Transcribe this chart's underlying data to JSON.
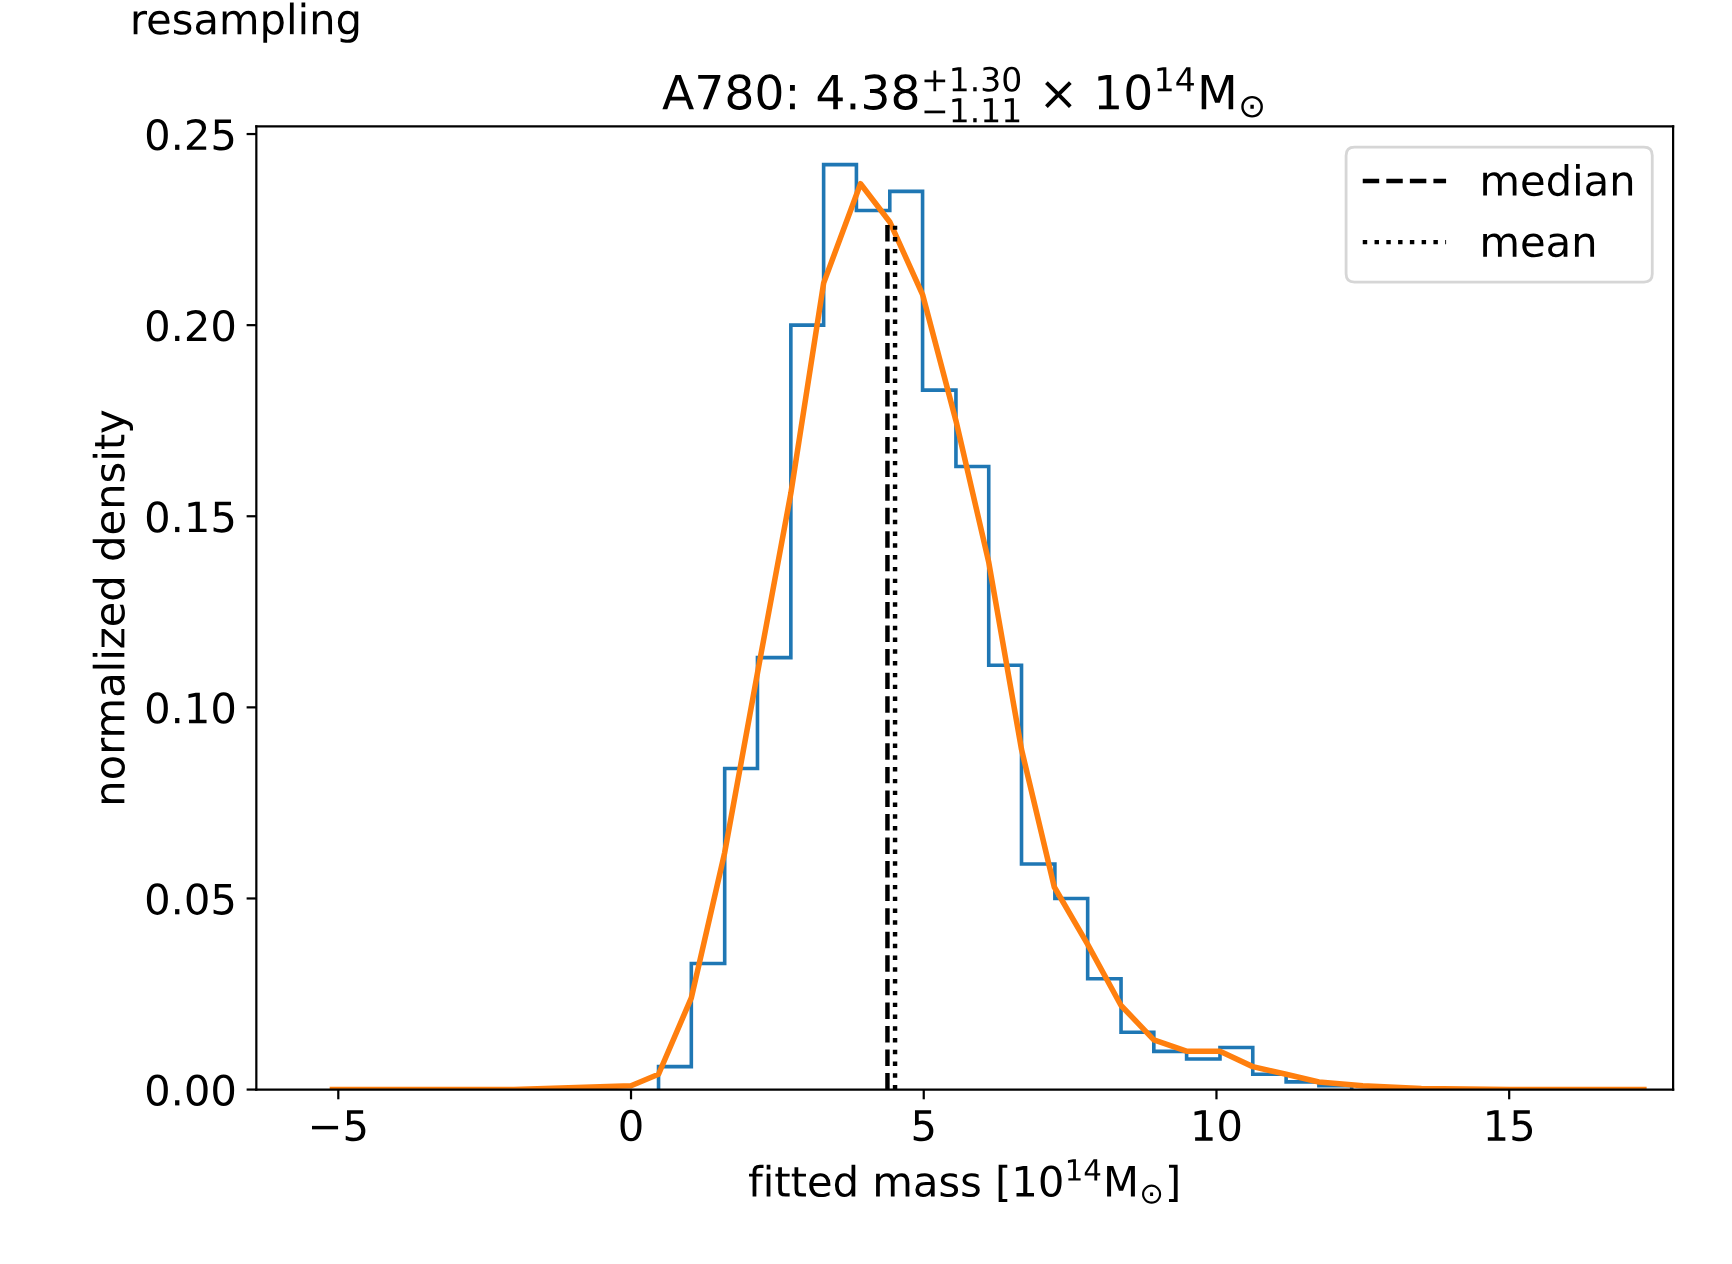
{
  "chart_data": {
    "type": "histogram",
    "title": "A780: 4.38$^{+1.30}$$_{−1.11}$ × 10$^{14}$M$_{⊙}$",
    "xlabel": "fitted mass [10$^{14}$M$_{⊙}$]",
    "ylabel": "normalized density",
    "annotations": [
      "resampling"
    ],
    "bins": [
      0.47,
      1.03,
      1.6,
      2.16,
      2.73,
      3.29,
      3.85,
      4.42,
      4.98,
      5.55,
      6.11,
      6.67,
      7.24,
      7.8,
      8.37,
      8.93,
      9.49,
      10.06,
      10.62,
      11.19,
      11.75,
      12.31
    ],
    "values": [
      0.006,
      0.033,
      0.084,
      0.113,
      0.2,
      0.242,
      0.23,
      0.235,
      0.183,
      0.163,
      0.111,
      0.059,
      0.05,
      0.029,
      0.015,
      0.01,
      0.008,
      0.011,
      0.004,
      0.002,
      0.001
    ],
    "color": "#1f77b4",
    "series": [
      {
        "type": "line",
        "color": "#ff7f0e",
        "line_style": "solid",
        "x": [
          -5.1,
          -2,
          0,
          0.47,
          1.03,
          1.6,
          2.16,
          2.73,
          3.29,
          3.92,
          4.42,
          4.98,
          5.55,
          6.11,
          6.67,
          7.23,
          7.8,
          8.37,
          8.93,
          9.5,
          10.06,
          10.62,
          11.19,
          11.75,
          12.5,
          13.5,
          15,
          17.3
        ],
        "values": [
          0,
          0,
          0.001,
          0.004,
          0.024,
          0.062,
          0.109,
          0.156,
          0.211,
          0.237,
          0.227,
          0.208,
          0.175,
          0.138,
          0.089,
          0.053,
          0.038,
          0.022,
          0.013,
          0.01,
          0.01,
          0.006,
          0.004,
          0.002,
          0.001,
          0.0003,
          0,
          0
        ]
      },
      {
        "type": "line",
        "name": "median",
        "color": "#000000",
        "line_style": "dashed",
        "x": [
          4.38,
          4.38
        ],
        "values": [
          0,
          0.227
        ]
      },
      {
        "type": "line",
        "name": "mean",
        "color": "#000000",
        "line_style": "dotted",
        "x": [
          4.51,
          4.51
        ],
        "values": [
          0,
          0.226
        ]
      }
    ],
    "xlim": [
      -6.4,
      17.8
    ],
    "ylim": [
      0,
      0.252
    ],
    "xticks": [
      {
        "value": -5,
        "label": "−5"
      },
      0,
      5,
      10,
      15
    ],
    "yticks": [
      {
        "value": 0,
        "label": "0.00"
      },
      {
        "value": 0.05,
        "label": "0.05"
      },
      {
        "value": 0.1,
        "label": "0.10"
      },
      {
        "value": 0.15,
        "label": "0.15"
      },
      {
        "value": 0.2,
        "label": "0.20"
      },
      {
        "value": 0.25,
        "label": "0.25"
      }
    ],
    "legend": "top right",
    "grid": false
  }
}
